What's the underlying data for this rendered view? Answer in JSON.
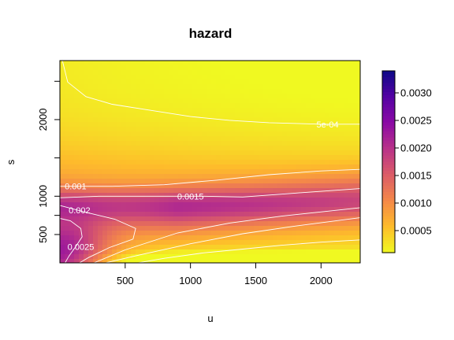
{
  "chart_data": {
    "type": "heatmap",
    "title": "hazard",
    "xlabel": "u",
    "ylabel": "s",
    "xlim": [
      0,
      2300
    ],
    "ylim": [
      130,
      2770
    ],
    "x_ticks": [
      500,
      1000,
      1500,
      2000
    ],
    "x_tick_labels": [
      "500",
      "1000",
      "1500",
      "2000"
    ],
    "y_ticks": [
      500,
      750,
      1000,
      1500,
      2000,
      2500
    ],
    "y_tick_labels": [
      "500",
      "",
      "1000",
      "",
      "2000",
      ""
    ],
    "colorscale": "plasma-reversed",
    "colorbar": {
      "range": [
        0.0001,
        0.0034
      ],
      "ticks": [
        0.0005,
        0.001,
        0.0015,
        0.002,
        0.0025,
        0.003
      ],
      "tick_labels": [
        "0.0005",
        "0.0010",
        "0.0015",
        "0.0020",
        "0.0025",
        "0.0030"
      ],
      "low_color": "#f0f921",
      "high_color": "#0d0887"
    },
    "contours": [
      {
        "level": 0.0005,
        "label": "5e-04",
        "segments": [
          [
            [
              0,
              2900
            ],
            [
              60,
              2490
            ],
            [
              200,
              2300
            ],
            [
              400,
              2200
            ],
            [
              700,
              2120
            ],
            [
              1000,
              2040
            ],
            [
              1300,
              1990
            ],
            [
              1600,
              1960
            ],
            [
              2000,
              1940
            ],
            [
              2300,
              1940
            ]
          ],
          [
            [
              600,
              130
            ],
            [
              800,
              190
            ],
            [
              1100,
              260
            ],
            [
              1400,
              310
            ],
            [
              1700,
              360
            ],
            [
              2000,
              400
            ],
            [
              2300,
              430
            ]
          ]
        ],
        "label_at": [
          2050,
          1940
        ]
      },
      {
        "level": 0.001,
        "label": "0.001",
        "segments": [
          [
            [
              0,
              1130
            ],
            [
              100,
              1130
            ],
            [
              400,
              1130
            ],
            [
              800,
              1150
            ],
            [
              1200,
              1210
            ],
            [
              1600,
              1280
            ],
            [
              2000,
              1330
            ],
            [
              2300,
              1350
            ]
          ],
          [
            [
              350,
              130
            ],
            [
              600,
              230
            ],
            [
              1000,
              380
            ],
            [
              1400,
              510
            ],
            [
              1800,
              610
            ],
            [
              2300,
              720
            ]
          ]
        ],
        "label_at": [
          120,
          1130
        ]
      },
      {
        "level": 0.0015,
        "label": "0.0015",
        "segments": [
          [
            [
              0,
              980
            ],
            [
              300,
              1000
            ],
            [
              700,
              1000
            ],
            [
              1100,
              1000
            ],
            [
              1400,
              990
            ],
            [
              1800,
              1040
            ],
            [
              2300,
              1100
            ]
          ],
          [
            [
              260,
              130
            ],
            [
              500,
              300
            ],
            [
              900,
              520
            ],
            [
              1300,
              650
            ],
            [
              1700,
              740
            ],
            [
              2300,
              850
            ]
          ]
        ],
        "label_at": [
          1000,
          1000
        ]
      },
      {
        "level": 0.002,
        "label": "0.002",
        "segments": [
          [
            [
              0,
              880
            ],
            [
              200,
              790
            ],
            [
              420,
              700
            ],
            [
              580,
              580
            ],
            [
              560,
              440
            ],
            [
              380,
              330
            ],
            [
              220,
              200
            ],
            [
              150,
              130
            ]
          ]
        ],
        "label_at": [
          150,
          820
        ]
      },
      {
        "level": 0.0025,
        "label": "0.0025",
        "segments": [
          [
            [
              0,
              710
            ],
            [
              80,
              680
            ],
            [
              160,
              580
            ],
            [
              170,
              470
            ],
            [
              120,
              340
            ],
            [
              70,
              220
            ],
            [
              40,
              130
            ]
          ]
        ],
        "label_at": [
          160,
          340
        ]
      }
    ]
  }
}
